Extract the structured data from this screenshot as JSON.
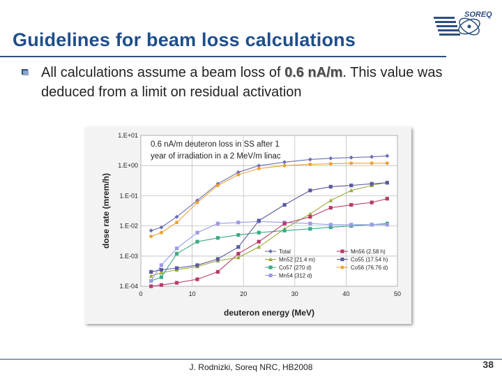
{
  "slide": {
    "title": "Guidelines for beam loss calculations",
    "logo_text": "SOREQ",
    "bullet_pre": "All calculations assume a beam loss of ",
    "bullet_highlight": "0.6 nA/m",
    "bullet_post": ". This value was deduced from a limit on residual activation",
    "footer": "J. Rodnizki, Soreq NRC, HB2008",
    "page_number": "38",
    "colors": {
      "title": "#1f4e8a",
      "rule": "#2c4f7f",
      "bullet": "#2c4f7f"
    }
  },
  "chart_data": {
    "type": "line",
    "title": "0.6 nA/m deuteron loss in SS after 1 year of irradiation in a 2 MeV/m linac",
    "xlabel": "deuteron energy (MeV)",
    "ylabel": "dose rate (mrem/h)",
    "xlim": [
      0,
      50
    ],
    "ylim": [
      0.0001,
      10
    ],
    "yscale": "log",
    "x_ticks": [
      "0",
      "10",
      "20",
      "30",
      "40",
      "50"
    ],
    "y_ticks": [
      "1.E-04",
      "1.E-03",
      "1.E-02",
      "1.E-01",
      "1.E+00",
      "1.E+01"
    ],
    "grid": true,
    "legend_position": "bottom-right",
    "x": [
      2,
      4,
      7,
      11,
      15,
      19,
      23,
      28,
      33,
      37,
      41,
      45,
      48
    ],
    "series": [
      {
        "name": "Total",
        "color": "#6b6fb5",
        "marker": "diamond",
        "values": [
          0.007,
          0.009,
          0.02,
          0.07,
          0.25,
          0.6,
          1.0,
          1.3,
          1.6,
          1.75,
          1.85,
          1.95,
          2.1
        ]
      },
      {
        "name": "Mn52 (21.4 m)",
        "color": "#9aaa38",
        "marker": "triangle",
        "values": [
          0.00022,
          0.00028,
          0.00035,
          0.00045,
          0.0007,
          0.0009,
          0.002,
          0.008,
          0.025,
          0.07,
          0.15,
          0.22,
          0.28
        ]
      },
      {
        "name": "Co57 (270 d)",
        "color": "#3aaa88",
        "marker": "square",
        "values": [
          0.00015,
          0.0002,
          0.0012,
          0.003,
          0.004,
          0.005,
          0.006,
          0.007,
          0.008,
          0.009,
          0.01,
          0.011,
          0.012
        ]
      },
      {
        "name": "Mn54 (312 d)",
        "color": "#9a9ae8",
        "marker": "square",
        "values": [
          0.00015,
          0.0005,
          0.0018,
          0.006,
          0.012,
          0.013,
          0.014,
          0.013,
          0.012,
          0.011,
          0.011,
          0.011,
          0.011
        ]
      },
      {
        "name": "Mn56 (2.58 h)",
        "color": "#b83a6a",
        "marker": "square",
        "values": [
          0.0001,
          0.00011,
          0.00013,
          0.00017,
          0.0003,
          0.0012,
          0.003,
          0.012,
          0.02,
          0.04,
          0.05,
          0.06,
          0.08
        ]
      },
      {
        "name": "Co55 (17.54 h)",
        "color": "#5a5aa0",
        "marker": "square",
        "values": [
          0.0003,
          0.00035,
          0.0004,
          0.0005,
          0.0008,
          0.002,
          0.015,
          0.05,
          0.15,
          0.2,
          0.22,
          0.25,
          0.27
        ]
      },
      {
        "name": "Co56 (76.76 d)",
        "color": "#f0a030",
        "marker": "circle",
        "values": [
          0.0045,
          0.006,
          0.013,
          0.06,
          0.22,
          0.5,
          0.8,
          1.0,
          1.1,
          1.15,
          1.2,
          1.2,
          1.2
        ]
      }
    ]
  }
}
